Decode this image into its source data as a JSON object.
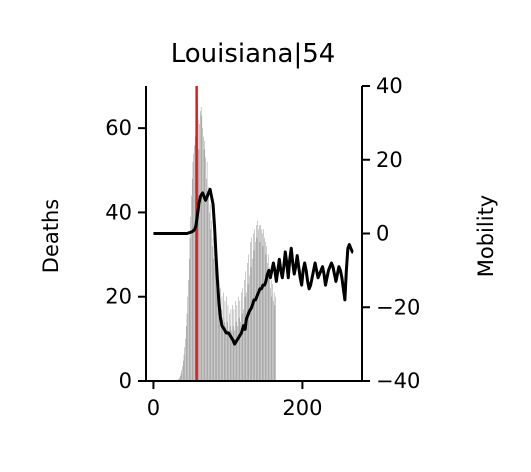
{
  "chart_data": {
    "type": "bar",
    "title": "Louisiana|54",
    "xlabel": "",
    "ylabel": "Deaths",
    "y2label": "Mobility",
    "xlim": [
      -10,
      280
    ],
    "ylim": [
      0,
      70
    ],
    "y2lim": [
      -40,
      40
    ],
    "x_ticks": [
      0,
      200
    ],
    "y_ticks": [
      0,
      20,
      40,
      60
    ],
    "y2_ticks": [
      40,
      20,
      0,
      -20,
      -40
    ],
    "y2_tick_labels": [
      "40",
      "20",
      "0",
      "−20",
      "−40"
    ],
    "vline_x": 58,
    "colors": {
      "bars": "#808080",
      "mobility": "#000000",
      "vline": "#e31a1c"
    },
    "series": [
      {
        "kind": "bar",
        "axis": "left",
        "x_start": 33,
        "values": [
          0.3,
          0.5,
          0.8,
          1.2,
          1.8,
          2.6,
          3.5,
          4.8,
          6.2,
          8,
          10,
          13,
          16,
          20,
          24,
          29,
          34,
          39,
          44,
          48,
          52,
          54,
          56,
          58,
          60,
          63,
          66,
          62,
          55,
          61,
          64,
          65,
          63,
          60,
          58,
          55,
          57,
          53,
          48,
          52,
          45,
          46,
          40,
          42,
          36,
          38,
          32,
          34,
          29,
          31,
          27,
          30,
          25,
          23,
          20,
          24,
          18,
          22,
          17,
          20,
          15,
          21,
          14,
          19,
          13,
          20,
          14,
          18,
          12,
          16,
          13,
          17,
          12,
          18,
          13,
          17,
          12,
          19,
          14,
          18,
          13,
          20,
          15,
          19,
          14,
          21,
          16,
          22,
          17,
          24,
          20,
          26,
          21,
          28,
          23,
          30,
          25,
          33,
          27,
          34,
          29,
          35,
          31,
          36,
          33,
          37,
          34,
          38,
          36,
          37,
          33,
          37,
          36,
          35,
          32,
          36,
          34,
          33,
          30,
          32,
          28,
          30,
          25,
          27,
          22,
          24,
          20,
          23,
          19,
          21,
          18,
          20
        ]
      },
      {
        "kind": "line",
        "axis": "right",
        "points": [
          [
            0,
            0
          ],
          [
            15,
            0
          ],
          [
            30,
            0
          ],
          [
            45,
            0
          ],
          [
            52,
            0.5
          ],
          [
            55,
            1
          ],
          [
            57,
            2
          ],
          [
            59,
            5
          ],
          [
            61,
            8
          ],
          [
            63,
            10
          ],
          [
            66,
            11
          ],
          [
            68,
            10
          ],
          [
            70,
            9
          ],
          [
            72,
            10
          ],
          [
            74,
            11
          ],
          [
            76,
            12
          ],
          [
            78,
            10
          ],
          [
            80,
            8
          ],
          [
            82,
            2
          ],
          [
            84,
            -6
          ],
          [
            86,
            -13
          ],
          [
            88,
            -19
          ],
          [
            90,
            -23
          ],
          [
            92,
            -25
          ],
          [
            95,
            -26
          ],
          [
            98,
            -27
          ],
          [
            101,
            -27
          ],
          [
            104,
            -28
          ],
          [
            107,
            -29
          ],
          [
            109,
            -30
          ],
          [
            112,
            -29
          ],
          [
            115,
            -28
          ],
          [
            118,
            -27
          ],
          [
            121,
            -25
          ],
          [
            123,
            -26
          ],
          [
            125,
            -23
          ],
          [
            127,
            -22
          ],
          [
            129,
            -21
          ],
          [
            132,
            -20
          ],
          [
            135,
            -18
          ],
          [
            137,
            -18
          ],
          [
            139,
            -17
          ],
          [
            141,
            -16
          ],
          [
            143,
            -15
          ],
          [
            145,
            -15
          ],
          [
            147,
            -14
          ],
          [
            149,
            -14
          ],
          [
            151,
            -13
          ],
          [
            153,
            -11
          ],
          [
            155,
            -10
          ],
          [
            157,
            -12
          ],
          [
            159,
            -10
          ],
          [
            161,
            -8
          ],
          [
            163,
            -10
          ],
          [
            165,
            -13
          ],
          [
            167,
            -10
          ],
          [
            169,
            -7
          ],
          [
            171,
            -10
          ],
          [
            173,
            -12
          ],
          [
            175,
            -9
          ],
          [
            177,
            -5
          ],
          [
            179,
            -8
          ],
          [
            181,
            -12
          ],
          [
            183,
            -7
          ],
          [
            185,
            -4
          ],
          [
            187,
            -8
          ],
          [
            189,
            -11
          ],
          [
            191,
            -9
          ],
          [
            193,
            -6
          ],
          [
            195,
            -9
          ],
          [
            197,
            -12
          ],
          [
            199,
            -14
          ],
          [
            201,
            -10
          ],
          [
            203,
            -8
          ],
          [
            205,
            -10
          ],
          [
            207,
            -13
          ],
          [
            209,
            -15
          ],
          [
            211,
            -14
          ],
          [
            213,
            -12
          ],
          [
            215,
            -10
          ],
          [
            217,
            -8
          ],
          [
            219,
            -10
          ],
          [
            221,
            -12
          ],
          [
            223,
            -11
          ],
          [
            225,
            -10
          ],
          [
            227,
            -9
          ],
          [
            229,
            -11
          ],
          [
            231,
            -14
          ],
          [
            233,
            -12
          ],
          [
            235,
            -10
          ],
          [
            237,
            -9
          ],
          [
            239,
            -8
          ],
          [
            241,
            -9
          ],
          [
            243,
            -11
          ],
          [
            245,
            -13
          ],
          [
            247,
            -11
          ],
          [
            249,
            -9
          ],
          [
            251,
            -10
          ],
          [
            253,
            -12
          ],
          [
            255,
            -15
          ],
          [
            257,
            -18
          ],
          [
            259,
            -10
          ],
          [
            261,
            -4
          ],
          [
            263,
            -3
          ],
          [
            265,
            -4
          ],
          [
            267,
            -5
          ],
          [
            268,
            -5
          ]
        ]
      }
    ]
  }
}
